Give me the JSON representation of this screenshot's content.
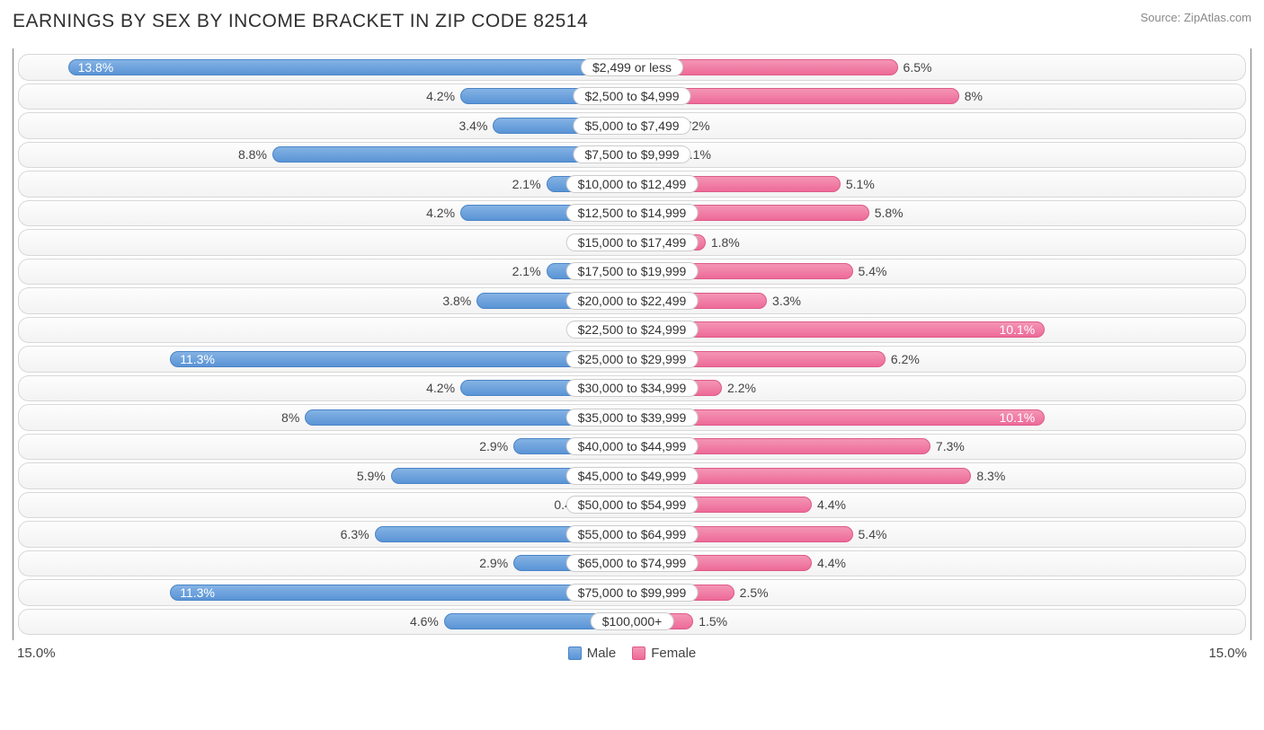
{
  "title": "EARNINGS BY SEX BY INCOME BRACKET IN ZIP CODE 82514",
  "source": "Source: ZipAtlas.com",
  "axis_max_label": "15.0%",
  "axis_max_value": 15.0,
  "legend": {
    "male": "Male",
    "female": "Female"
  },
  "colors": {
    "male_top": "#84b3e4",
    "male_bot": "#5a94d6",
    "male_border": "#4a84c6",
    "female_top": "#f495b5",
    "female_bot": "#ed6a98",
    "female_border": "#dd5a88",
    "row_border": "#d8d8d8",
    "axis_border": "#7a7a7a",
    "text": "#303030",
    "value_text": "#444444",
    "inside_text": "#ffffff"
  },
  "inside_threshold": 9.5,
  "rows": [
    {
      "label": "$2,499 or less",
      "male": 13.8,
      "female": 6.5
    },
    {
      "label": "$2,500 to $4,999",
      "male": 4.2,
      "female": 8.0
    },
    {
      "label": "$5,000 to $7,499",
      "male": 3.4,
      "female": 0.72
    },
    {
      "label": "$7,500 to $9,999",
      "male": 8.8,
      "female": 1.1
    },
    {
      "label": "$10,000 to $12,499",
      "male": 2.1,
      "female": 5.1
    },
    {
      "label": "$12,500 to $14,999",
      "male": 4.2,
      "female": 5.8
    },
    {
      "label": "$15,000 to $17,499",
      "male": 0.0,
      "female": 1.8
    },
    {
      "label": "$17,500 to $19,999",
      "male": 2.1,
      "female": 5.4
    },
    {
      "label": "$20,000 to $22,499",
      "male": 3.8,
      "female": 3.3
    },
    {
      "label": "$22,500 to $24,999",
      "male": 0.0,
      "female": 10.1
    },
    {
      "label": "$25,000 to $29,999",
      "male": 11.3,
      "female": 6.2
    },
    {
      "label": "$30,000 to $34,999",
      "male": 4.2,
      "female": 2.2
    },
    {
      "label": "$35,000 to $39,999",
      "male": 8.0,
      "female": 10.1
    },
    {
      "label": "$40,000 to $44,999",
      "male": 2.9,
      "female": 7.3
    },
    {
      "label": "$45,000 to $49,999",
      "male": 5.9,
      "female": 8.3
    },
    {
      "label": "$50,000 to $54,999",
      "male": 0.42,
      "female": 4.4
    },
    {
      "label": "$55,000 to $64,999",
      "male": 6.3,
      "female": 5.4
    },
    {
      "label": "$65,000 to $74,999",
      "male": 2.9,
      "female": 4.4
    },
    {
      "label": "$75,000 to $99,999",
      "male": 11.3,
      "female": 2.5
    },
    {
      "label": "$100,000+",
      "male": 4.6,
      "female": 1.5
    }
  ]
}
